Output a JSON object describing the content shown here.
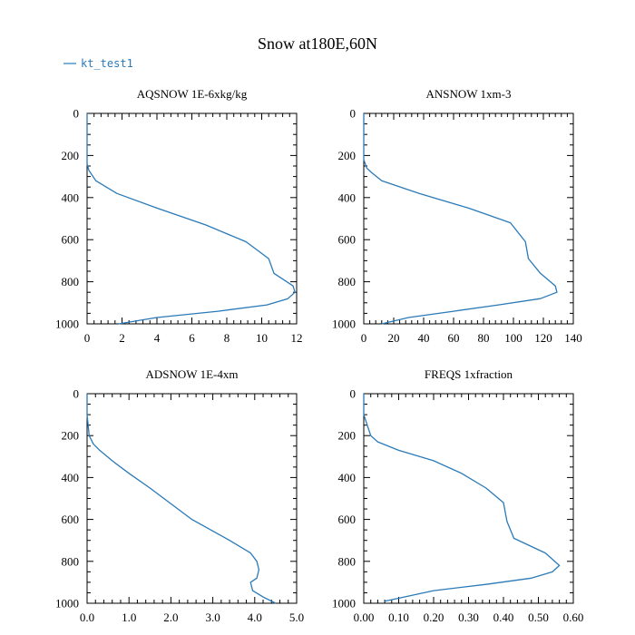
{
  "title": "Snow at180E,60N",
  "legend": {
    "label": "kt_test1",
    "placement": "top-left"
  },
  "colors": {
    "series": "#2a7ab8",
    "axis": "#000000"
  },
  "chart_data": [
    {
      "type": "line",
      "title": "AQSNOW  1E-6xkg/kg",
      "xlabel": "",
      "ylabel": "",
      "xlim": [
        0,
        12
      ],
      "ylim": [
        1000,
        0
      ],
      "xticks": [
        0,
        2,
        4,
        6,
        8,
        10,
        12
      ],
      "xtick_labels": [
        "0",
        "2",
        "4",
        "6",
        "8",
        "10",
        "12"
      ],
      "yticks": [
        0,
        200,
        400,
        600,
        800,
        1000
      ],
      "ytick_labels": [
        "0",
        "200",
        "400",
        "600",
        "800",
        "1000"
      ],
      "grid": false,
      "series": [
        {
          "x": [
            0,
            0,
            0,
            0,
            0.1,
            0.5,
            1.7,
            4.0,
            6.8,
            9.1,
            10.4,
            10.7,
            11.8,
            11.9,
            11.5,
            10.3,
            7.5,
            4.0,
            1.8
          ],
          "y": [
            0,
            100,
            200,
            240,
            270,
            320,
            380,
            450,
            530,
            610,
            690,
            760,
            820,
            850,
            880,
            910,
            940,
            970,
            1000
          ]
        }
      ]
    },
    {
      "type": "line",
      "title": "ANSNOW  1xm-3",
      "xlabel": "",
      "ylabel": "",
      "xlim": [
        0,
        140
      ],
      "ylim": [
        1000,
        0
      ],
      "xticks": [
        0,
        20,
        40,
        60,
        80,
        100,
        120,
        140
      ],
      "xtick_labels": [
        "0",
        "20",
        "40",
        "60",
        "80",
        "100",
        "120",
        "140"
      ],
      "yticks": [
        0,
        200,
        400,
        600,
        800,
        1000
      ],
      "ytick_labels": [
        "0",
        "200",
        "400",
        "600",
        "800",
        "1000"
      ],
      "grid": false,
      "series": [
        {
          "x": [
            0,
            0,
            0,
            2,
            5,
            12,
            37,
            70,
            98,
            108,
            110,
            118,
            128,
            129,
            118,
            90,
            60,
            30,
            12
          ],
          "y": [
            0,
            100,
            220,
            260,
            280,
            320,
            380,
            450,
            520,
            610,
            690,
            760,
            820,
            850,
            880,
            910,
            940,
            970,
            1000
          ]
        }
      ]
    },
    {
      "type": "line",
      "title": "ADSNOW  1E-4xm",
      "xlabel": "",
      "ylabel": "",
      "xlim": [
        0,
        5
      ],
      "ylim": [
        1000,
        0
      ],
      "xticks": [
        0,
        1,
        2,
        3,
        4,
        5
      ],
      "xtick_labels": [
        "0.0",
        "1.0",
        "2.0",
        "3.0",
        "4.0",
        "5.0"
      ],
      "yticks": [
        0,
        200,
        400,
        600,
        800,
        1000
      ],
      "ytick_labels": [
        "0",
        "200",
        "400",
        "600",
        "800",
        "1000"
      ],
      "grid": false,
      "series": [
        {
          "x": [
            0,
            0,
            0.05,
            0.15,
            0.3,
            0.6,
            1.0,
            1.5,
            2.5,
            3.4,
            3.9,
            4.05,
            4.1,
            4.05,
            3.9,
            3.95,
            4.2,
            4.5
          ],
          "y": [
            0,
            100,
            200,
            240,
            270,
            320,
            380,
            450,
            600,
            700,
            760,
            800,
            840,
            880,
            900,
            940,
            970,
            1000
          ]
        }
      ]
    },
    {
      "type": "line",
      "title": "FREQS  1xfraction",
      "xlabel": "",
      "ylabel": "",
      "xlim": [
        0,
        0.6
      ],
      "ylim": [
        1000,
        0
      ],
      "xticks": [
        0,
        0.1,
        0.2,
        0.3,
        0.4,
        0.5,
        0.6
      ],
      "xtick_labels": [
        "0.00",
        "0.10",
        "0.20",
        "0.30",
        "0.40",
        "0.50",
        "0.60"
      ],
      "yticks": [
        0,
        200,
        400,
        600,
        800,
        1000
      ],
      "ytick_labels": [
        "0",
        "200",
        "400",
        "600",
        "800",
        "1000"
      ],
      "grid": false,
      "series": [
        {
          "x": [
            0,
            0,
            0.02,
            0.04,
            0.1,
            0.2,
            0.28,
            0.35,
            0.4,
            0.41,
            0.43,
            0.52,
            0.56,
            0.54,
            0.48,
            0.35,
            0.2,
            0.06
          ],
          "y": [
            0,
            100,
            200,
            230,
            270,
            320,
            380,
            450,
            520,
            610,
            690,
            760,
            820,
            850,
            880,
            910,
            940,
            990
          ]
        }
      ]
    }
  ]
}
